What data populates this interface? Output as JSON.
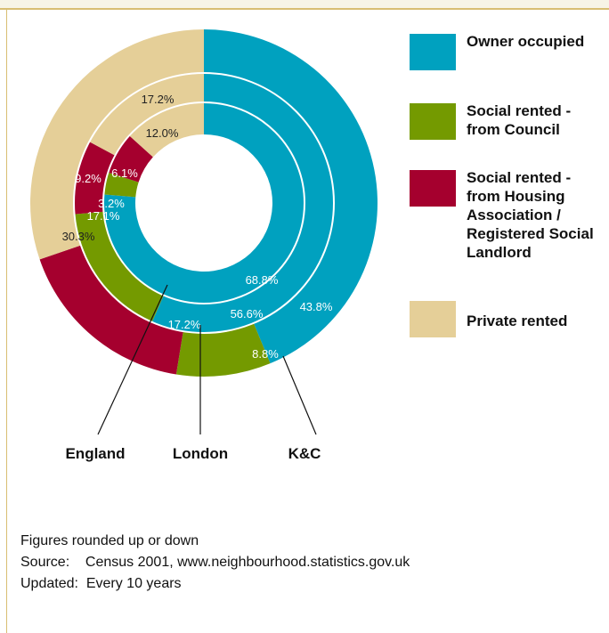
{
  "chart_data": {
    "type": "pie",
    "variant": "concentric-donut",
    "categories": [
      "Owner occupied",
      "Social rented - from Council",
      "Social rented - from Housing Association / Registered Social Landlord",
      "Private rented"
    ],
    "series": [
      {
        "name": "K&C",
        "values": [
          43.8,
          8.8,
          17.2,
          30.3
        ],
        "labels": [
          "43.8%",
          "8.8%",
          "17.2%",
          "30.3%"
        ]
      },
      {
        "name": "London",
        "values": [
          56.6,
          17.1,
          9.2,
          17.2
        ],
        "labels": [
          "56.6%",
          "17.1%",
          "9.2%",
          "17.2%"
        ]
      },
      {
        "name": "England",
        "values": [
          68.8,
          3.2,
          6.1,
          12.0
        ],
        "labels": [
          "68.8%",
          "3.2%",
          "6.1%",
          "12.0%"
        ]
      }
    ],
    "colors": [
      "#00a1bf",
      "#749a00",
      "#a5002e",
      "#e5cf98"
    ],
    "ring_labels": [
      "England",
      "London",
      "K&C"
    ],
    "start": "12 o'clock, clockwise"
  },
  "legend": [
    {
      "label": "Owner occupied",
      "color": "#00a1bf"
    },
    {
      "label": "Social rented - from Council",
      "color": "#749a00"
    },
    {
      "label": "Social rented - from Housing Association / Registered Social Landlord",
      "color": "#a5002e"
    },
    {
      "label": "Private rented",
      "color": "#e5cf98"
    }
  ],
  "footer": {
    "note": "Figures rounded up or down",
    "source_label": "Source:",
    "source_text": "Census 2001, www.neighbourhood.statistics.gov.uk",
    "updated_label": "Updated:",
    "updated_text": "Every 10 years"
  }
}
